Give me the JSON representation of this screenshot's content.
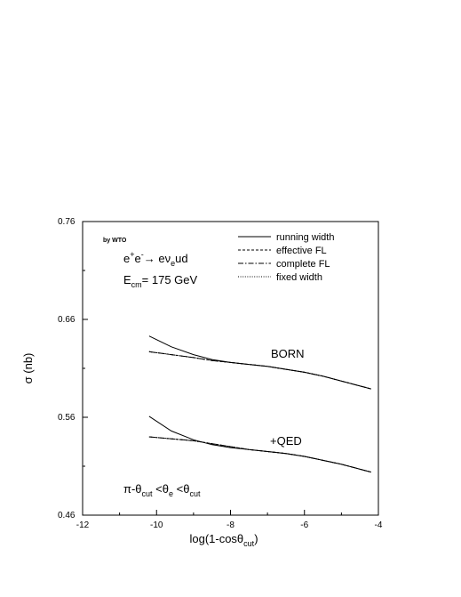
{
  "chart_data": {
    "type": "line",
    "xlabel": "log(1-cosθ",
    "xlabel_sub": "cut",
    "xlabel_close": ")",
    "ylabel": "σ (nb)",
    "xlim": [
      -12,
      -4
    ],
    "ylim": [
      0.46,
      0.76
    ],
    "x_ticks": [
      -12,
      -10,
      -8,
      -6,
      -4
    ],
    "x_tick_labels": [
      "-12",
      "-10",
      "-8",
      "-6",
      "-4"
    ],
    "y_ticks": [
      0.46,
      0.56,
      0.66,
      0.76
    ],
    "y_tick_labels": [
      "0.46",
      "0.56",
      "0.66",
      "0.76"
    ],
    "legend_position": "top-right",
    "legend": [
      {
        "label": "running width",
        "style": "solid"
      },
      {
        "label": "effective FL",
        "style": "dashed"
      },
      {
        "label": "complete FL",
        "style": "dashdot"
      },
      {
        "label": "fixed width",
        "style": "dotted"
      }
    ],
    "annotations": {
      "author": "by WTO",
      "process_main": "e",
      "process_sup1": "+",
      "process_mid": "e",
      "process_sup2": "-",
      "process_arrow": "→ eν",
      "process_sub": "e",
      "process_end": "ud",
      "energy_E": "E",
      "energy_sub": "cm",
      "energy_val": "= 175 GeV",
      "cut_a": "π-θ",
      "cut_a_sub": "cut",
      "cut_b": " <θ",
      "cut_b_sub": "e",
      "cut_c": " <θ",
      "cut_c_sub": "cut",
      "born_label": "BORN",
      "qed_label": "+QED"
    },
    "groups": [
      {
        "label": "BORN",
        "x": [
          -10.2,
          -9.6,
          -9.0,
          -8.5,
          -8.0,
          -7.5,
          -7.0,
          -6.5,
          -6.0,
          -5.5,
          -5.0,
          -4.5,
          -4.2
        ],
        "series": [
          {
            "style": "solid",
            "values": [
              0.643,
              0.632,
              0.624,
              0.619,
              0.616,
              0.614,
              0.612,
              0.609,
              0.606,
              0.602,
              0.597,
              0.592,
              0.589
            ]
          },
          {
            "style": "dashed",
            "values": [
              0.627,
              0.624,
              0.621,
              0.618,
              0.616,
              0.614,
              0.612,
              0.609,
              0.606,
              0.602,
              0.597,
              0.592,
              0.589
            ]
          },
          {
            "style": "dashdot",
            "values": [
              0.627,
              0.624,
              0.621,
              0.618,
              0.616,
              0.614,
              0.612,
              0.609,
              0.606,
              0.602,
              0.597,
              0.592,
              0.589
            ]
          },
          {
            "style": "dotted",
            "values": [
              0.627,
              0.624,
              0.621,
              0.618,
              0.616,
              0.614,
              0.612,
              0.609,
              0.606,
              0.602,
              0.597,
              0.592,
              0.589
            ]
          }
        ]
      },
      {
        "label": "+QED",
        "x": [
          -10.2,
          -9.6,
          -9.0,
          -8.5,
          -8.0,
          -7.5,
          -7.0,
          -6.5,
          -6.0,
          -5.5,
          -5.0,
          -4.5,
          -4.2
        ],
        "series": [
          {
            "style": "solid",
            "values": [
              0.561,
              0.546,
              0.537,
              0.532,
              0.529,
              0.527,
              0.525,
              0.523,
              0.52,
              0.516,
              0.512,
              0.507,
              0.504
            ]
          },
          {
            "style": "dashed",
            "values": [
              0.54,
              0.538,
              0.536,
              0.533,
              0.53,
              0.527,
              0.525,
              0.523,
              0.52,
              0.516,
              0.512,
              0.507,
              0.504
            ]
          },
          {
            "style": "dashdot",
            "values": [
              0.54,
              0.538,
              0.536,
              0.533,
              0.53,
              0.527,
              0.525,
              0.523,
              0.52,
              0.516,
              0.512,
              0.507,
              0.504
            ]
          },
          {
            "style": "dotted",
            "values": [
              0.54,
              0.538,
              0.536,
              0.533,
              0.53,
              0.527,
              0.525,
              0.523,
              0.52,
              0.516,
              0.512,
              0.507,
              0.504
            ]
          }
        ]
      }
    ]
  }
}
